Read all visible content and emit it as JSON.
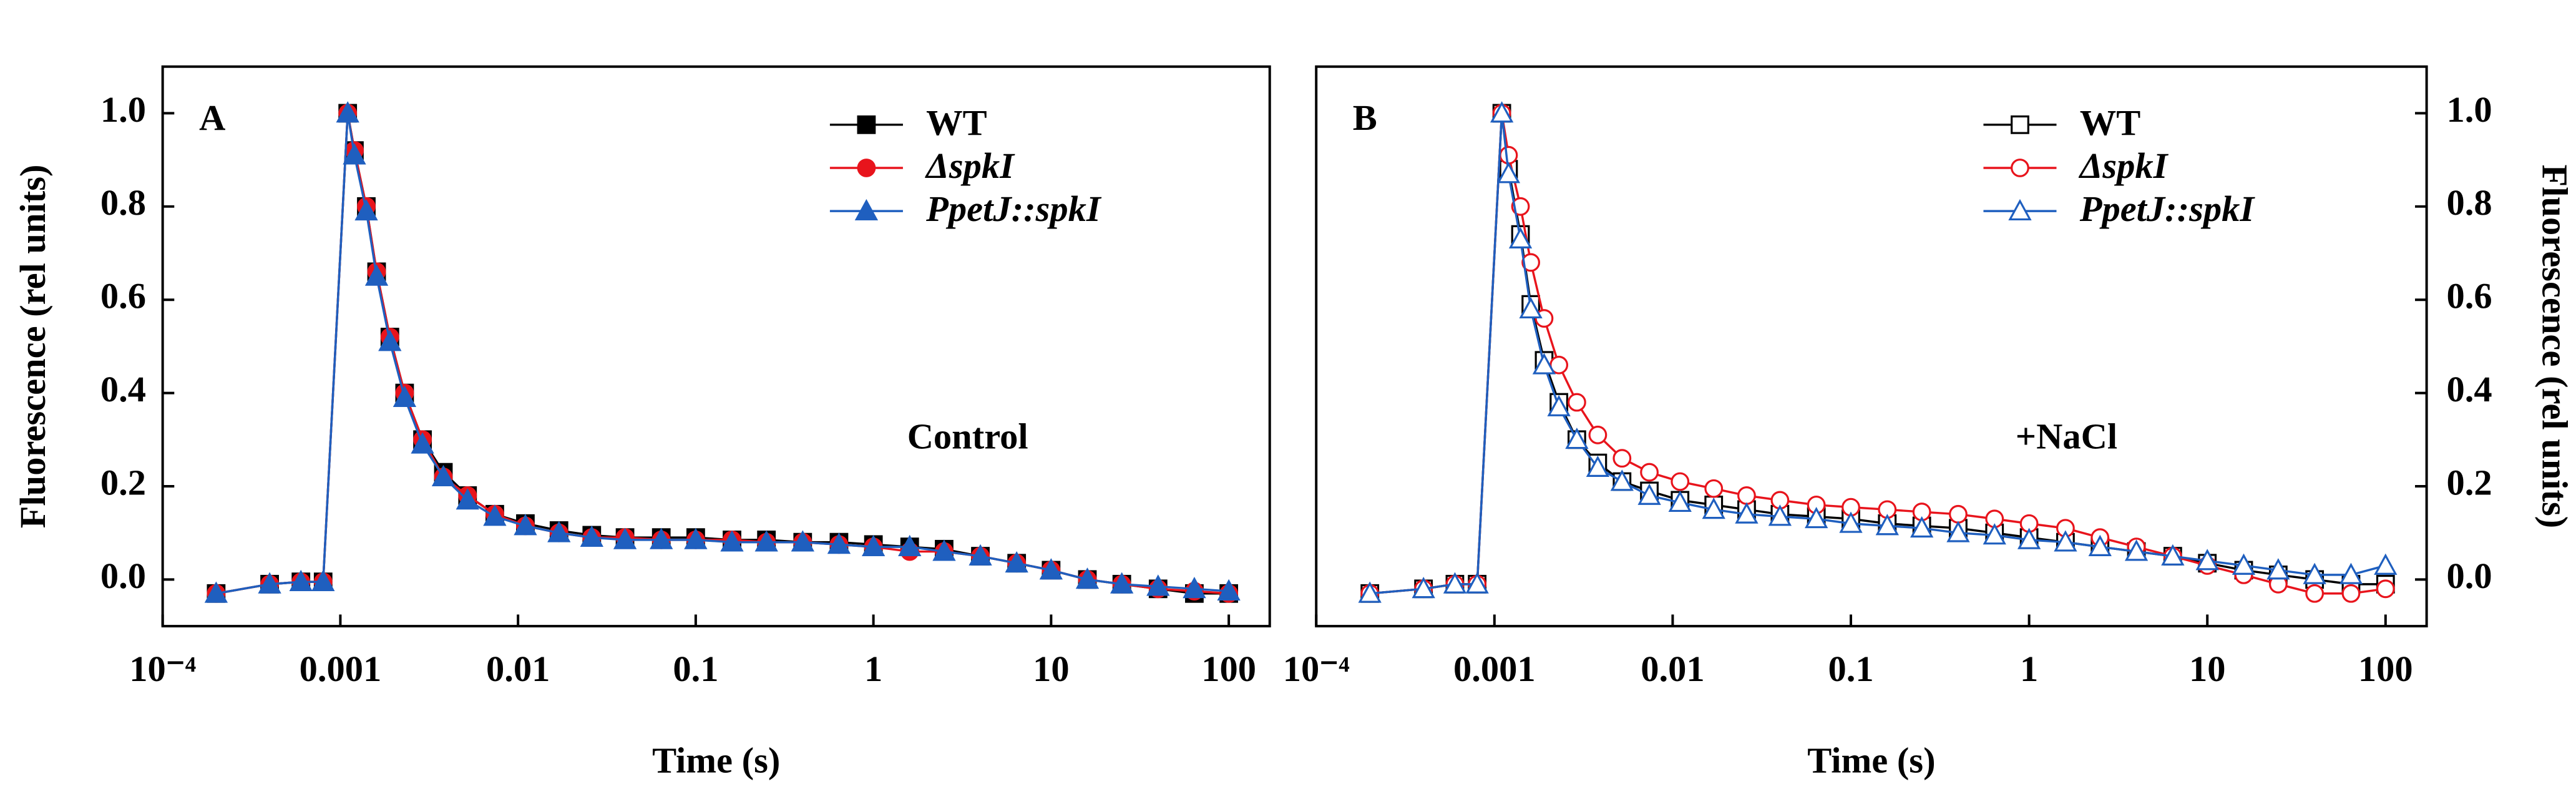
{
  "chart_data": [
    {
      "type": "line",
      "panel": "A",
      "annotation": "Control",
      "xlabel": "Time (s)",
      "ylabel": "Fluorescence (rel units)",
      "log_x": true,
      "y_axis_side": "left",
      "legend": "upper right",
      "xlim": [
        0.0001,
        170
      ],
      "xticks": [
        {
          "value": 0.0001,
          "label": "10⁻⁴"
        },
        0.001,
        0.01,
        0.1,
        1,
        10,
        100
      ],
      "ylim": [
        -0.1,
        1.1
      ],
      "yticks": [
        {
          "value": 0,
          "label": "0.0"
        },
        {
          "value": 0.2,
          "label": "0.2"
        },
        {
          "value": 0.4,
          "label": "0.4"
        },
        {
          "value": 0.6,
          "label": "0.6"
        },
        {
          "value": 0.8,
          "label": "0.8"
        },
        {
          "value": 1,
          "label": "1.0"
        }
      ],
      "x": [
        0.0002,
        0.0004,
        0.0006,
        0.0008,
        0.0011,
        0.0012,
        0.0014,
        0.0016,
        0.0019,
        0.0023,
        0.0029,
        0.0038,
        0.0052,
        0.0074,
        0.011,
        0.017,
        0.026,
        0.04,
        0.064,
        0.1,
        0.16,
        0.25,
        0.4,
        0.64,
        1,
        1.6,
        2.5,
        4,
        6.4,
        10,
        16,
        25,
        40,
        64,
        100
      ],
      "series": [
        {
          "name": "WT",
          "color": "#000000",
          "marker": "square",
          "filled": true,
          "values": [
            -0.03,
            -0.01,
            -0.005,
            -0.005,
            1.0,
            0.92,
            0.8,
            0.66,
            0.52,
            0.4,
            0.3,
            0.23,
            0.18,
            0.14,
            0.12,
            0.105,
            0.095,
            0.09,
            0.09,
            0.09,
            0.085,
            0.085,
            0.08,
            0.08,
            0.075,
            0.07,
            0.065,
            0.05,
            0.035,
            0.02,
            0.0,
            -0.01,
            -0.02,
            -0.03,
            -0.03
          ]
        },
        {
          "name": "ΔspkI",
          "color": "#e8141c",
          "marker": "circle",
          "filled": true,
          "values": [
            -0.03,
            -0.01,
            -0.005,
            -0.005,
            1.0,
            0.92,
            0.8,
            0.66,
            0.52,
            0.4,
            0.3,
            0.22,
            0.18,
            0.14,
            0.115,
            0.1,
            0.09,
            0.09,
            0.085,
            0.085,
            0.085,
            0.08,
            0.08,
            0.075,
            0.07,
            0.06,
            0.06,
            0.05,
            0.035,
            0.02,
            0.0,
            -0.01,
            -0.02,
            -0.025,
            -0.03
          ]
        },
        {
          "name": "PpetJ::spkI",
          "color": "#1f5fbf",
          "marker": "triangle",
          "filled": true,
          "values": [
            -0.03,
            -0.01,
            -0.005,
            -0.005,
            1.0,
            0.91,
            0.79,
            0.65,
            0.51,
            0.39,
            0.29,
            0.22,
            0.17,
            0.135,
            0.115,
            0.1,
            0.09,
            0.085,
            0.085,
            0.085,
            0.08,
            0.08,
            0.08,
            0.075,
            0.07,
            0.07,
            0.06,
            0.05,
            0.035,
            0.02,
            0.0,
            -0.01,
            -0.015,
            -0.02,
            -0.025
          ]
        }
      ]
    },
    {
      "type": "line",
      "panel": "B",
      "annotation": "+NaCl",
      "xlabel": "Time (s)",
      "ylabel": "Fluorescence (rel units)",
      "log_x": true,
      "y_axis_side": "right",
      "legend": "upper right",
      "xlim": [
        0.0001,
        170
      ],
      "xticks": [
        {
          "value": 0.0001,
          "label": "10⁻⁴"
        },
        0.001,
        0.01,
        0.1,
        1,
        10,
        100
      ],
      "ylim": [
        -0.1,
        1.1
      ],
      "yticks": [
        {
          "value": 0,
          "label": "0.0"
        },
        {
          "value": 0.2,
          "label": "0.2"
        },
        {
          "value": 0.4,
          "label": "0.4"
        },
        {
          "value": 0.6,
          "label": "0.6"
        },
        {
          "value": 0.8,
          "label": "0.8"
        },
        {
          "value": 1,
          "label": "1.0"
        }
      ],
      "x": [
        0.0002,
        0.0004,
        0.0006,
        0.0008,
        0.0011,
        0.0012,
        0.0014,
        0.0016,
        0.0019,
        0.0023,
        0.0029,
        0.0038,
        0.0052,
        0.0074,
        0.011,
        0.017,
        0.026,
        0.04,
        0.064,
        0.1,
        0.16,
        0.25,
        0.4,
        0.64,
        1,
        1.6,
        2.5,
        4,
        6.4,
        10,
        16,
        25,
        40,
        64,
        100
      ],
      "series": [
        {
          "name": "WT",
          "color": "#000000",
          "marker": "square",
          "filled": false,
          "values": [
            -0.03,
            -0.02,
            -0.01,
            -0.01,
            1.0,
            0.88,
            0.74,
            0.59,
            0.47,
            0.38,
            0.3,
            0.25,
            0.21,
            0.19,
            0.17,
            0.16,
            0.15,
            0.14,
            0.135,
            0.13,
            0.12,
            0.115,
            0.11,
            0.1,
            0.09,
            0.08,
            0.07,
            0.06,
            0.05,
            0.035,
            0.02,
            0.01,
            0.0,
            -0.01,
            -0.01
          ]
        },
        {
          "name": "ΔspkI",
          "color": "#e8141c",
          "marker": "circle",
          "filled": false,
          "values": [
            -0.03,
            -0.02,
            -0.01,
            -0.01,
            1.0,
            0.91,
            0.8,
            0.68,
            0.56,
            0.46,
            0.38,
            0.31,
            0.26,
            0.23,
            0.21,
            0.195,
            0.18,
            0.17,
            0.16,
            0.155,
            0.15,
            0.145,
            0.14,
            0.13,
            0.12,
            0.11,
            0.09,
            0.07,
            0.05,
            0.03,
            0.01,
            -0.01,
            -0.03,
            -0.03,
            -0.02
          ]
        },
        {
          "name": "PpetJ::spkI",
          "color": "#1f5fbf",
          "marker": "triangle",
          "filled": false,
          "values": [
            -0.03,
            -0.02,
            -0.01,
            -0.01,
            1.0,
            0.87,
            0.73,
            0.58,
            0.46,
            0.37,
            0.3,
            0.24,
            0.21,
            0.18,
            0.165,
            0.15,
            0.14,
            0.135,
            0.13,
            0.12,
            0.115,
            0.11,
            0.1,
            0.095,
            0.085,
            0.08,
            0.07,
            0.06,
            0.05,
            0.04,
            0.03,
            0.02,
            0.01,
            0.01,
            0.03
          ]
        }
      ]
    }
  ]
}
